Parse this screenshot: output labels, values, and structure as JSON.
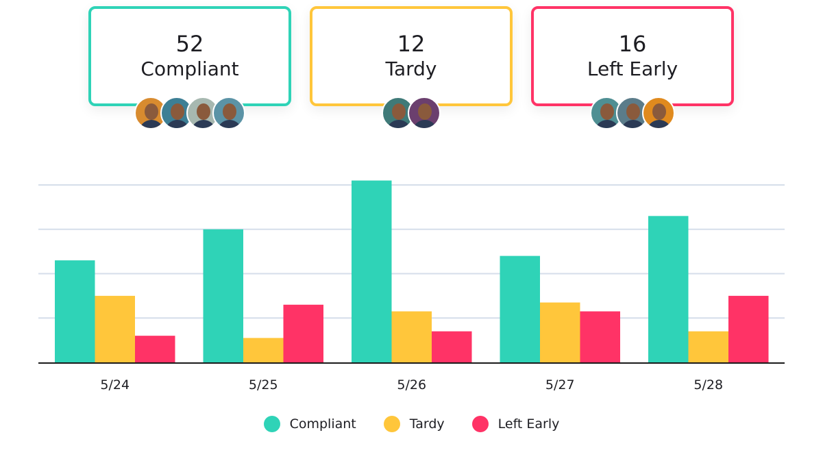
{
  "colors": {
    "compliant": "#2fd3b7",
    "tardy": "#ffc63b",
    "left_early": "#ff3366",
    "grid": "#d5deea",
    "axis": "#1a1a1a"
  },
  "cards": [
    {
      "value": "52",
      "label": "Compliant",
      "color": "#2fd3b7",
      "avatars": [
        "#d88b2f",
        "#3d7f95",
        "#a7b8b0",
        "#5b93a6"
      ]
    },
    {
      "value": "12",
      "label": "Tardy",
      "color": "#ffc63b",
      "avatars": [
        "#3f7a78",
        "#6b3f6e"
      ]
    },
    {
      "value": "16",
      "label": "Left Early",
      "color": "#ff3366",
      "avatars": [
        "#4f8f93",
        "#5b7c8a",
        "#e08a1e"
      ]
    }
  ],
  "chart_data": {
    "type": "bar",
    "categories": [
      "5/24",
      "5/25",
      "5/26",
      "5/27",
      "5/28"
    ],
    "series": [
      {
        "name": "Compliant",
        "color": "#2fd3b7",
        "values": [
          23,
          30,
          41,
          24,
          33
        ]
      },
      {
        "name": "Tardy",
        "color": "#ffc63b",
        "values": [
          15,
          5.5,
          11.5,
          13.5,
          7
        ]
      },
      {
        "name": "Left Early",
        "color": "#ff3366",
        "values": [
          6,
          13,
          7,
          11.5,
          15
        ]
      }
    ],
    "ylim": [
      0,
      40
    ],
    "y_gridlines": [
      10,
      20,
      30,
      40
    ],
    "y_tick_labels_shown": false,
    "grid": true,
    "legend": "bottom"
  }
}
